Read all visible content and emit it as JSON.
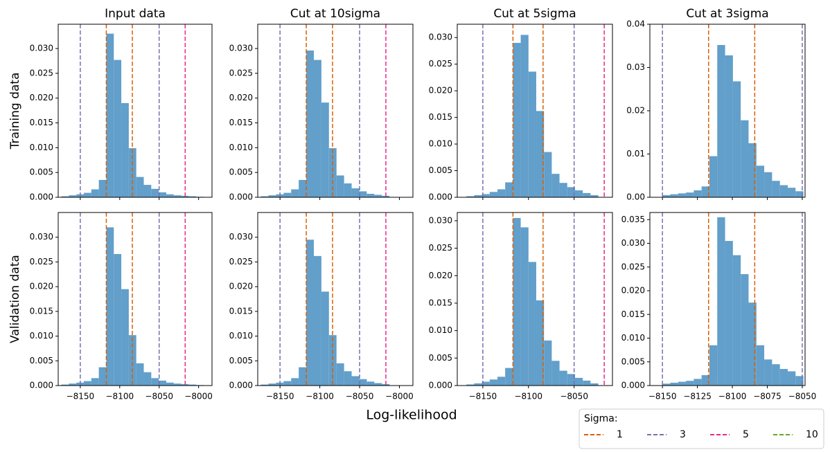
{
  "chart_data": [
    {
      "type": "histogram",
      "title": "Input data",
      "color": "#629fca",
      "bins": [
        -8174,
        -8164.5,
        -8155,
        -8145.5,
        -8136,
        -8126.5,
        -8117,
        -8107.5,
        -8098,
        -8088.5,
        -8079,
        -8069.5,
        -8060,
        -8050.5,
        -8041,
        -8031.5,
        -8022,
        -8012.5,
        -8003,
        -7993.5
      ],
      "values": [
        0.0002,
        0.0004,
        0.0006,
        0.0009,
        0.0016,
        0.0035,
        0.033,
        0.0277,
        0.019,
        0.0099,
        0.0041,
        0.0025,
        0.0017,
        0.001,
        0.0006,
        0.0004,
        0.0003,
        0.0002,
        0.0001
      ],
      "xlim": [
        -8178,
        -7983
      ],
      "ylim": [
        0,
        0.0349
      ],
      "xticks": [
        -8150,
        -8100,
        -8050,
        -8000
      ],
      "yticks": [
        {
          "value": 0,
          "label": "0.000"
        },
        {
          "value": 0.005,
          "label": "0.005"
        },
        {
          "value": 0.01,
          "label": "0.010"
        },
        {
          "value": 0.015,
          "label": "0.015"
        },
        {
          "value": 0.02,
          "label": "0.020"
        },
        {
          "value": 0.025,
          "label": "0.025"
        },
        {
          "value": 0.03,
          "label": "0.030"
        }
      ],
      "vlines": [
        {
          "color": "#d95f02",
          "x": [
            -8117,
            -8084
          ]
        },
        {
          "color": "#7570b3",
          "x": [
            -8150,
            -8050
          ]
        },
        {
          "color": "#e7298a",
          "x": [
            -8017
          ]
        }
      ]
    },
    {
      "type": "histogram",
      "title": "Cut at 10sigma",
      "color": "#629fca",
      "bins": [
        -8174,
        -8164.5,
        -8155,
        -8145.5,
        -8136,
        -8126.5,
        -8117,
        -8107.5,
        -8098,
        -8088.5,
        -8079,
        -8069.5,
        -8060,
        -8050.5,
        -8041,
        -8031.5,
        -8022,
        -8012.5
      ],
      "values": [
        0.0002,
        0.0004,
        0.0006,
        0.0009,
        0.0016,
        0.0035,
        0.0296,
        0.0277,
        0.0191,
        0.0099,
        0.0044,
        0.0028,
        0.0018,
        0.0012,
        0.0007,
        0.0005,
        0.0003
      ],
      "xlim": [
        -8178,
        -7983
      ],
      "ylim": [
        0,
        0.0349
      ],
      "xticks": [
        -8150,
        -8100,
        -8050,
        -8000
      ],
      "yticks": [
        {
          "value": 0,
          "label": "0.000"
        },
        {
          "value": 0.005,
          "label": "0.005"
        },
        {
          "value": 0.01,
          "label": "0.010"
        },
        {
          "value": 0.015,
          "label": "0.015"
        },
        {
          "value": 0.02,
          "label": "0.020"
        },
        {
          "value": 0.025,
          "label": "0.025"
        },
        {
          "value": 0.03,
          "label": "0.030"
        }
      ],
      "vlines": [
        {
          "color": "#d95f02",
          "x": [
            -8117,
            -8084
          ]
        },
        {
          "color": "#7570b3",
          "x": [
            -8150,
            -8050
          ]
        },
        {
          "color": "#e7298a",
          "x": [
            -8017
          ]
        }
      ]
    },
    {
      "type": "histogram",
      "title": "Cut at 5sigma",
      "color": "#629fca",
      "bins": [
        -8168,
        -8159.5,
        -8151,
        -8142.5,
        -8134,
        -8125.5,
        -8117,
        -8108.5,
        -8100,
        -8091.5,
        -8083,
        -8074.5,
        -8066,
        -8057.5,
        -8049,
        -8040.5,
        -8032,
        -8023.5
      ],
      "values": [
        0.0002,
        0.0004,
        0.0006,
        0.001,
        0.0015,
        0.0028,
        0.029,
        0.0305,
        0.0236,
        0.0162,
        0.0085,
        0.0044,
        0.0027,
        0.0019,
        0.0013,
        0.0008,
        0.0004
      ],
      "xlim": [
        -8178,
        -8008
      ],
      "ylim": [
        0,
        0.0325
      ],
      "xticks": [
        -8150,
        -8100,
        -8050
      ],
      "yticks": [
        {
          "value": 0,
          "label": "0.000"
        },
        {
          "value": 0.005,
          "label": "0.005"
        },
        {
          "value": 0.01,
          "label": "0.010"
        },
        {
          "value": 0.015,
          "label": "0.015"
        },
        {
          "value": 0.02,
          "label": "0.020"
        },
        {
          "value": 0.025,
          "label": "0.025"
        },
        {
          "value": 0.03,
          "label": "0.030"
        }
      ],
      "vlines": [
        {
          "color": "#d95f02",
          "x": [
            -8117,
            -8084
          ]
        },
        {
          "color": "#7570b3",
          "x": [
            -8150,
            -8050
          ]
        },
        {
          "color": "#e7298a",
          "x": [
            -8017
          ]
        }
      ]
    },
    {
      "type": "histogram",
      "title": "Cut at 3sigma",
      "color": "#629fca",
      "bins": [
        -8150,
        -8144.4,
        -8138.8,
        -8133.2,
        -8127.6,
        -8122,
        -8116.4,
        -8110.8,
        -8105.2,
        -8099.6,
        -8094,
        -8088.4,
        -8082.8,
        -8077.2,
        -8071.6,
        -8066,
        -8060.4,
        -8054.8,
        -8049.2
      ],
      "values": [
        0.0005,
        0.0007,
        0.0009,
        0.0011,
        0.0016,
        0.0025,
        0.0095,
        0.0352,
        0.0328,
        0.0268,
        0.0178,
        0.0125,
        0.0073,
        0.0058,
        0.0038,
        0.0028,
        0.0022,
        0.0014
      ],
      "xlim": [
        -8159,
        -8048
      ],
      "ylim": [
        0,
        0.04
      ],
      "xticks": [
        -8150,
        -8125,
        -8100,
        -8075,
        -8050
      ],
      "yticks": [
        {
          "value": 0,
          "label": "0.00"
        },
        {
          "value": 0.01,
          "label": "0.01"
        },
        {
          "value": 0.02,
          "label": "0.02"
        },
        {
          "value": 0.03,
          "label": "0.03"
        },
        {
          "value": 0.04,
          "label": "0.04"
        }
      ],
      "vlines": [
        {
          "color": "#d95f02",
          "x": [
            -8117,
            -8084
          ]
        },
        {
          "color": "#7570b3",
          "x": [
            -8150,
            -8050
          ]
        }
      ]
    },
    {
      "type": "histogram",
      "color": "#629fca",
      "bins": [
        -8174,
        -8164.5,
        -8155,
        -8145.5,
        -8136,
        -8126.5,
        -8117,
        -8107.5,
        -8098,
        -8088.5,
        -8079,
        -8069.5,
        -8060,
        -8050.5,
        -8041,
        -8031.5,
        -8022,
        -8012.5,
        -8003,
        -7993.5
      ],
      "values": [
        0.0002,
        0.0004,
        0.0006,
        0.0009,
        0.0015,
        0.0037,
        0.032,
        0.0266,
        0.0195,
        0.0102,
        0.0045,
        0.0027,
        0.0015,
        0.001,
        0.0006,
        0.0004,
        0.0003,
        0.0002,
        0.0001
      ],
      "xlim": [
        -8178,
        -7983
      ],
      "ylim": [
        0,
        0.035
      ],
      "xticks": [
        {
          "value": -8150,
          "label": "−8150"
        },
        {
          "value": -8100,
          "label": "−8100"
        },
        {
          "value": -8050,
          "label": "−8050"
        },
        {
          "value": -8000,
          "label": "−8000"
        }
      ],
      "yticks": [
        {
          "value": 0,
          "label": "0.000"
        },
        {
          "value": 0.005,
          "label": "0.005"
        },
        {
          "value": 0.01,
          "label": "0.010"
        },
        {
          "value": 0.015,
          "label": "0.015"
        },
        {
          "value": 0.02,
          "label": "0.020"
        },
        {
          "value": 0.025,
          "label": "0.025"
        },
        {
          "value": 0.03,
          "label": "0.030"
        }
      ],
      "vlines": [
        {
          "color": "#d95f02",
          "x": [
            -8117,
            -8084
          ]
        },
        {
          "color": "#7570b3",
          "x": [
            -8150,
            -8050
          ]
        },
        {
          "color": "#e7298a",
          "x": [
            -8017
          ]
        }
      ]
    },
    {
      "type": "histogram",
      "color": "#629fca",
      "bins": [
        -8174,
        -8164.5,
        -8155,
        -8145.5,
        -8136,
        -8126.5,
        -8117,
        -8107.5,
        -8098,
        -8088.5,
        -8079,
        -8069.5,
        -8060,
        -8050.5,
        -8041,
        -8031.5,
        -8022,
        -8012.5
      ],
      "values": [
        0.0002,
        0.0004,
        0.0006,
        0.0009,
        0.0015,
        0.0037,
        0.0295,
        0.0262,
        0.019,
        0.0102,
        0.0045,
        0.0029,
        0.0019,
        0.0013,
        0.0008,
        0.0005,
        0.0003
      ],
      "xlim": [
        -8178,
        -7983
      ],
      "ylim": [
        0,
        0.035
      ],
      "xticks": [
        {
          "value": -8150,
          "label": "−8150"
        },
        {
          "value": -8100,
          "label": "−8100"
        },
        {
          "value": -8050,
          "label": "−8050"
        },
        {
          "value": -8000,
          "label": "−8000"
        }
      ],
      "yticks": [
        {
          "value": 0,
          "label": "0.000"
        },
        {
          "value": 0.005,
          "label": "0.005"
        },
        {
          "value": 0.01,
          "label": "0.010"
        },
        {
          "value": 0.015,
          "label": "0.015"
        },
        {
          "value": 0.02,
          "label": "0.020"
        },
        {
          "value": 0.025,
          "label": "0.025"
        },
        {
          "value": 0.03,
          "label": "0.030"
        }
      ],
      "vlines": [
        {
          "color": "#d95f02",
          "x": [
            -8117,
            -8084
          ]
        },
        {
          "color": "#7570b3",
          "x": [
            -8150,
            -8050
          ]
        },
        {
          "color": "#e7298a",
          "x": [
            -8017
          ]
        }
      ]
    },
    {
      "type": "histogram",
      "color": "#629fca",
      "bins": [
        -8168,
        -8159.5,
        -8151,
        -8142.5,
        -8134,
        -8125.5,
        -8117,
        -8108.5,
        -8100,
        -8091.5,
        -8083,
        -8074.5,
        -8066,
        -8057.5,
        -8049,
        -8040.5,
        -8032,
        -8023.5
      ],
      "values": [
        0.0002,
        0.0004,
        0.0007,
        0.0011,
        0.0016,
        0.0032,
        0.0305,
        0.0288,
        0.0225,
        0.0155,
        0.0082,
        0.0045,
        0.0027,
        0.0021,
        0.0014,
        0.0009,
        0.0004
      ],
      "xlim": [
        -8178,
        -8008
      ],
      "ylim": [
        0,
        0.0315
      ],
      "xticks": [
        {
          "value": -8150,
          "label": "−8150"
        },
        {
          "value": -8100,
          "label": "−8100"
        },
        {
          "value": -8050,
          "label": "−8050"
        }
      ],
      "yticks": [
        {
          "value": 0,
          "label": "0.000"
        },
        {
          "value": 0.005,
          "label": "0.005"
        },
        {
          "value": 0.01,
          "label": "0.010"
        },
        {
          "value": 0.015,
          "label": "0.015"
        },
        {
          "value": 0.02,
          "label": "0.020"
        },
        {
          "value": 0.025,
          "label": "0.025"
        },
        {
          "value": 0.03,
          "label": "0.030"
        }
      ],
      "vlines": [
        {
          "color": "#d95f02",
          "x": [
            -8117,
            -8084
          ]
        },
        {
          "color": "#7570b3",
          "x": [
            -8150,
            -8050
          ]
        },
        {
          "color": "#e7298a",
          "x": [
            -8017
          ]
        }
      ]
    },
    {
      "type": "histogram",
      "color": "#629fca",
      "bins": [
        -8150,
        -8144.4,
        -8138.8,
        -8133.2,
        -8127.6,
        -8122,
        -8116.4,
        -8110.8,
        -8105.2,
        -8099.6,
        -8094,
        -8088.4,
        -8082.8,
        -8077.2,
        -8071.6,
        -8066,
        -8060.4,
        -8054.8,
        -8049.2
      ],
      "values": [
        0.0004,
        0.0006,
        0.0008,
        0.001,
        0.0014,
        0.0022,
        0.0085,
        0.0355,
        0.0305,
        0.0275,
        0.0235,
        0.0175,
        0.0085,
        0.0055,
        0.0045,
        0.0035,
        0.003,
        0.002
      ],
      "xlim": [
        -8159,
        -8048
      ],
      "ylim": [
        0,
        0.0365
      ],
      "xticks": [
        {
          "value": -8150,
          "label": "−8150"
        },
        {
          "value": -8125,
          "label": "−8125"
        },
        {
          "value": -8100,
          "label": "−8100"
        },
        {
          "value": -8075,
          "label": "−8075"
        },
        {
          "value": -8050,
          "label": "−8050"
        }
      ],
      "yticks": [
        {
          "value": 0,
          "label": "0.000"
        },
        {
          "value": 0.005,
          "label": "0.005"
        },
        {
          "value": 0.01,
          "label": "0.010"
        },
        {
          "value": 0.015,
          "label": "0.015"
        },
        {
          "value": 0.02,
          "label": "0.020"
        },
        {
          "value": 0.025,
          "label": "0.025"
        },
        {
          "value": 0.03,
          "label": "0.030"
        },
        {
          "value": 0.035,
          "label": "0.035"
        }
      ],
      "vlines": [
        {
          "color": "#d95f02",
          "x": [
            -8117,
            -8084
          ]
        },
        {
          "color": "#7570b3",
          "x": [
            -8150,
            -8050
          ]
        }
      ]
    }
  ],
  "row_labels": [
    "Training data",
    "Validation data"
  ],
  "xlabel": "Log-likelihood",
  "legend": {
    "title": "Sigma:",
    "entries": [
      {
        "name": "1",
        "color": "#d95f02"
      },
      {
        "name": "3",
        "color": "#7570b3"
      },
      {
        "name": "5",
        "color": "#e7298a"
      },
      {
        "name": "10",
        "color": "#66a61e"
      }
    ]
  }
}
